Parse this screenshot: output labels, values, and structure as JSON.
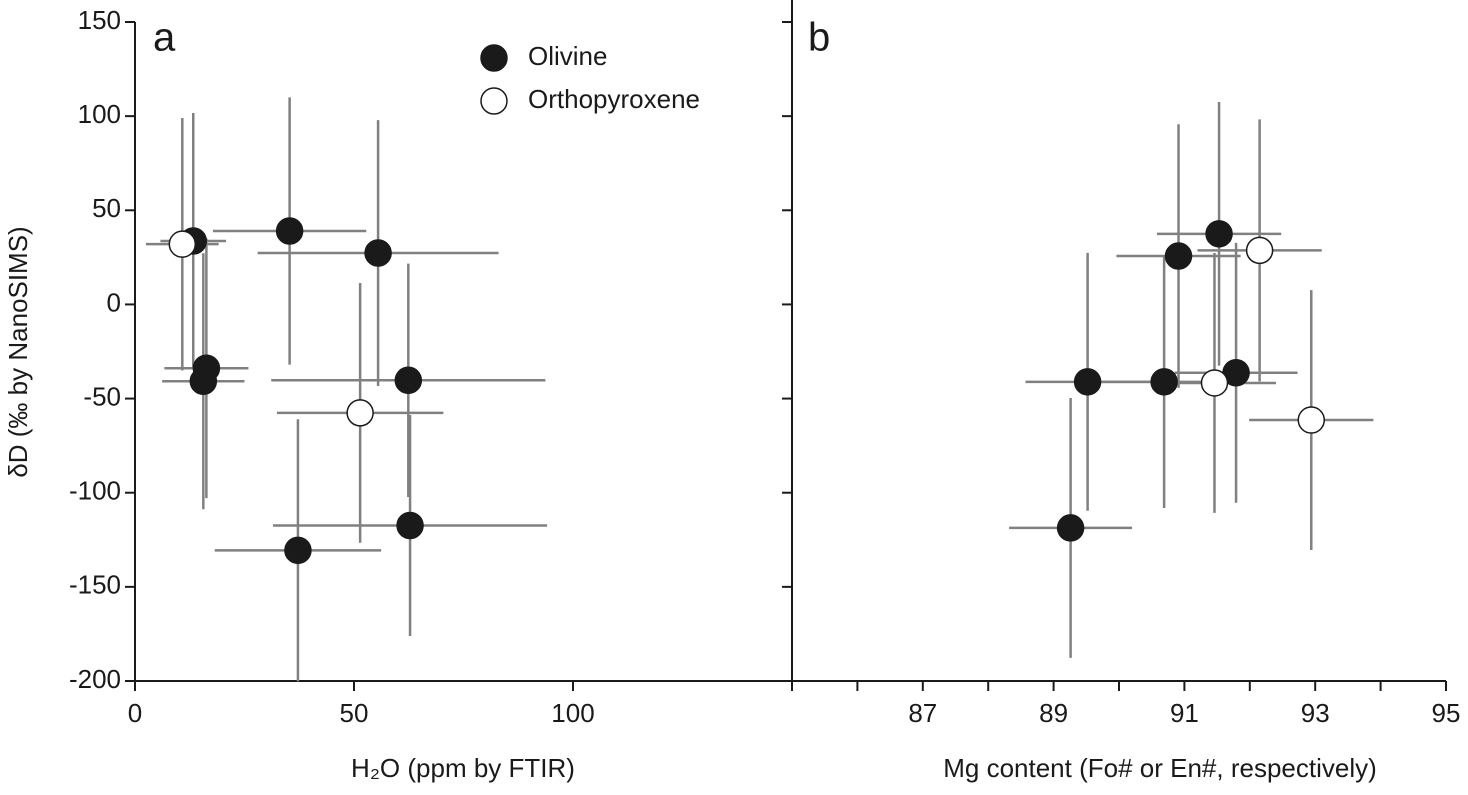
{
  "chart_data": [
    {
      "type": "scatter",
      "panel_label": "a",
      "xlabel": "H₂O (ppm by FTIR)",
      "ylabel": "δD (‰ by NanoSIMS)",
      "xlim": [
        0,
        150
      ],
      "xticks": [
        0,
        50,
        100
      ],
      "ylim": [
        -200,
        150
      ],
      "yticks": [
        -200,
        -150,
        -100,
        -50,
        0,
        50,
        100,
        150
      ],
      "ytick_labels": true,
      "legend": "top",
      "errorbar_color": "#808080",
      "series": [
        {
          "name": "Olivine",
          "color": "#1a1a1a",
          "x": [
            13.3,
            35.3,
            55.5,
            16.3,
            15.6,
            62.4,
            62.8,
            37.2
          ],
          "values": [
            33.7,
            39,
            27.3,
            -33.9,
            -40.8,
            -40.3,
            -117.4,
            -130.6
          ],
          "xerr": [
            7.5,
            17.5,
            27.5,
            9.6,
            9.4,
            31.3,
            31.3,
            19
          ],
          "yerr": [
            68,
            71,
            70.6,
            69,
            68,
            62,
            58.7,
            69.6
          ]
        },
        {
          "name": "Orthopyroxene",
          "color": "#ffffff",
          "x": [
            10.8,
            51.4
          ],
          "values": [
            32,
            -57.6
          ],
          "xerr": [
            8.3,
            19
          ],
          "yerr": [
            67,
            69
          ]
        }
      ]
    },
    {
      "type": "scatter",
      "panel_label": "b",
      "xlabel": "Mg content (Fo# or En#, respectively)",
      "xlim": [
        85,
        95
      ],
      "xticks": [
        87,
        89,
        91,
        93,
        95
      ],
      "xminorticks": [
        85,
        86,
        88,
        90,
        92,
        94
      ],
      "ylim": [
        -200,
        150
      ],
      "yticks": [
        -200,
        -150,
        -100,
        -50,
        0,
        50,
        100,
        150
      ],
      "ytick_labels": false,
      "errorbar_color": "#808080",
      "series": [
        {
          "color": "#1a1a1a",
          "x": [
            91.53,
            90.91,
            89.52,
            90.69,
            91.79,
            89.26
          ],
          "values": [
            37.5,
            25.7,
            -41.1,
            -41.1,
            -36.3,
            -118.7
          ],
          "xerr": [
            0.95,
            0.95,
            0.95,
            0.95,
            0.94,
            0.94
          ],
          "yerr": [
            70,
            70,
            68.5,
            67,
            69,
            69
          ]
        },
        {
          "color": "#ffffff",
          "x": [
            92.15,
            91.46,
            92.94
          ],
          "values": [
            28.7,
            -41.7,
            -61.4
          ],
          "xerr": [
            0.95,
            0.94,
            0.95
          ],
          "yerr": [
            69.6,
            69,
            69
          ]
        }
      ]
    }
  ]
}
